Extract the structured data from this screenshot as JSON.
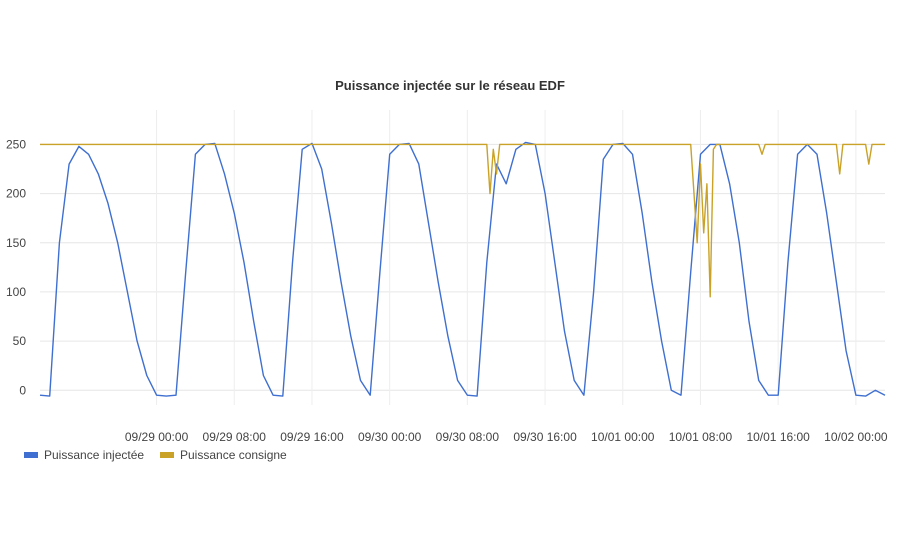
{
  "chart_data": {
    "type": "line",
    "title": "Puissance injectée sur le réseau EDF",
    "xlabel": "",
    "ylabel": "",
    "ylim": [
      -15,
      285
    ],
    "y_ticks": [
      0,
      50,
      100,
      150,
      200,
      250
    ],
    "x_range": [
      "2023-09-28 12:00",
      "2023-10-02 03:00"
    ],
    "x_ticks": [
      {
        "t": "2023-09-29 00:00",
        "label": "09/29 00:00"
      },
      {
        "t": "2023-09-29 08:00",
        "label": "09/29 08:00"
      },
      {
        "t": "2023-09-29 16:00",
        "label": "09/29 16:00"
      },
      {
        "t": "2023-09-30 00:00",
        "label": "09/30 00:00"
      },
      {
        "t": "2023-09-30 08:00",
        "label": "09/30 08:00"
      },
      {
        "t": "2023-09-30 16:00",
        "label": "09/30 16:00"
      },
      {
        "t": "2023-10-01 00:00",
        "label": "10/01 00:00"
      },
      {
        "t": "2023-10-01 08:00",
        "label": "10/01 08:00"
      },
      {
        "t": "2023-10-01 16:00",
        "label": "10/01 16:00"
      },
      {
        "t": "2023-10-02 00:00",
        "label": "10/02 00:00"
      }
    ],
    "grid": true,
    "legend_position": "bottom-left",
    "series": [
      {
        "name": "Puissance injectée",
        "color": "#3f6fd0",
        "points": [
          [
            "2023-09-28 12:00",
            -5
          ],
          [
            "2023-09-28 13:00",
            -6
          ],
          [
            "2023-09-28 14:00",
            150
          ],
          [
            "2023-09-28 15:00",
            230
          ],
          [
            "2023-09-28 16:00",
            248
          ],
          [
            "2023-09-28 17:00",
            240
          ],
          [
            "2023-09-28 18:00",
            220
          ],
          [
            "2023-09-28 19:00",
            190
          ],
          [
            "2023-09-28 20:00",
            150
          ],
          [
            "2023-09-28 21:00",
            100
          ],
          [
            "2023-09-28 22:00",
            50
          ],
          [
            "2023-09-28 23:00",
            15
          ],
          [
            "2023-09-29 00:00",
            -5
          ],
          [
            "2023-09-29 01:00",
            -6
          ],
          [
            "2023-09-29 02:00",
            -5
          ],
          [
            "2023-09-29 03:00",
            120
          ],
          [
            "2023-09-29 04:00",
            240
          ],
          [
            "2023-09-29 05:00",
            250
          ],
          [
            "2023-09-29 06:00",
            251
          ],
          [
            "2023-09-29 07:00",
            220
          ],
          [
            "2023-09-29 08:00",
            180
          ],
          [
            "2023-09-29 09:00",
            130
          ],
          [
            "2023-09-29 10:00",
            70
          ],
          [
            "2023-09-29 11:00",
            15
          ],
          [
            "2023-09-29 12:00",
            -5
          ],
          [
            "2023-09-29 13:00",
            -6
          ],
          [
            "2023-09-29 14:00",
            130
          ],
          [
            "2023-09-29 15:00",
            245
          ],
          [
            "2023-09-29 16:00",
            251
          ],
          [
            "2023-09-29 17:00",
            225
          ],
          [
            "2023-09-29 18:00",
            170
          ],
          [
            "2023-09-29 19:00",
            110
          ],
          [
            "2023-09-29 20:00",
            55
          ],
          [
            "2023-09-29 21:00",
            10
          ],
          [
            "2023-09-29 22:00",
            -5
          ],
          [
            "2023-09-29 23:00",
            120
          ],
          [
            "2023-09-30 00:00",
            240
          ],
          [
            "2023-09-30 01:00",
            250
          ],
          [
            "2023-09-30 02:00",
            251
          ],
          [
            "2023-09-30 03:00",
            230
          ],
          [
            "2023-09-30 04:00",
            170
          ],
          [
            "2023-09-30 05:00",
            110
          ],
          [
            "2023-09-30 06:00",
            55
          ],
          [
            "2023-09-30 07:00",
            10
          ],
          [
            "2023-09-30 08:00",
            -5
          ],
          [
            "2023-09-30 09:00",
            -6
          ],
          [
            "2023-09-30 10:00",
            130
          ],
          [
            "2023-09-30 11:00",
            230
          ],
          [
            "2023-09-30 12:00",
            210
          ],
          [
            "2023-09-30 13:00",
            245
          ],
          [
            "2023-09-30 14:00",
            252
          ],
          [
            "2023-09-30 15:00",
            250
          ],
          [
            "2023-09-30 16:00",
            200
          ],
          [
            "2023-09-30 17:00",
            130
          ],
          [
            "2023-09-30 18:00",
            60
          ],
          [
            "2023-09-30 19:00",
            10
          ],
          [
            "2023-09-30 20:00",
            -5
          ],
          [
            "2023-09-30 21:00",
            100
          ],
          [
            "2023-09-30 22:00",
            235
          ],
          [
            "2023-09-30 23:00",
            250
          ],
          [
            "2023-10-01 00:00",
            251
          ],
          [
            "2023-10-01 01:00",
            240
          ],
          [
            "2023-10-01 02:00",
            180
          ],
          [
            "2023-10-01 03:00",
            110
          ],
          [
            "2023-10-01 04:00",
            50
          ],
          [
            "2023-10-01 05:00",
            0
          ],
          [
            "2023-10-01 06:00",
            -5
          ],
          [
            "2023-10-01 07:00",
            120
          ],
          [
            "2023-10-01 08:00",
            240
          ],
          [
            "2023-10-01 09:00",
            250
          ],
          [
            "2023-10-01 10:00",
            250
          ],
          [
            "2023-10-01 11:00",
            210
          ],
          [
            "2023-10-01 12:00",
            150
          ],
          [
            "2023-10-01 13:00",
            70
          ],
          [
            "2023-10-01 14:00",
            10
          ],
          [
            "2023-10-01 15:00",
            -5
          ],
          [
            "2023-10-01 16:00",
            -5
          ],
          [
            "2023-10-01 17:00",
            130
          ],
          [
            "2023-10-01 18:00",
            240
          ],
          [
            "2023-10-01 19:00",
            250
          ],
          [
            "2023-10-01 20:00",
            240
          ],
          [
            "2023-10-01 21:00",
            180
          ],
          [
            "2023-10-01 22:00",
            110
          ],
          [
            "2023-10-01 23:00",
            40
          ],
          [
            "2023-10-02 00:00",
            -5
          ],
          [
            "2023-10-02 01:00",
            -6
          ],
          [
            "2023-10-02 02:00",
            0
          ],
          [
            "2023-10-02 03:00",
            -5
          ]
        ]
      },
      {
        "name": "Puissance consigne",
        "color": "#c9a227",
        "points": [
          [
            "2023-09-28 12:00",
            250
          ],
          [
            "2023-09-30 10:00",
            250
          ],
          [
            "2023-09-30 10:20",
            200
          ],
          [
            "2023-09-30 10:40",
            245
          ],
          [
            "2023-09-30 11:00",
            220
          ],
          [
            "2023-09-30 11:20",
            250
          ],
          [
            "2023-10-01 07:00",
            250
          ],
          [
            "2023-10-01 07:20",
            200
          ],
          [
            "2023-10-01 07:40",
            150
          ],
          [
            "2023-10-01 08:00",
            230
          ],
          [
            "2023-10-01 08:20",
            160
          ],
          [
            "2023-10-01 08:40",
            210
          ],
          [
            "2023-10-01 09:00",
            95
          ],
          [
            "2023-10-01 09:20",
            245
          ],
          [
            "2023-10-01 09:40",
            250
          ],
          [
            "2023-10-01 14:00",
            250
          ],
          [
            "2023-10-01 14:20",
            240
          ],
          [
            "2023-10-01 14:40",
            250
          ],
          [
            "2023-10-01 22:00",
            250
          ],
          [
            "2023-10-01 22:20",
            220
          ],
          [
            "2023-10-01 22:40",
            250
          ],
          [
            "2023-10-02 01:00",
            250
          ],
          [
            "2023-10-02 01:20",
            230
          ],
          [
            "2023-10-02 01:40",
            250
          ],
          [
            "2023-10-02 03:00",
            250
          ]
        ]
      }
    ]
  }
}
